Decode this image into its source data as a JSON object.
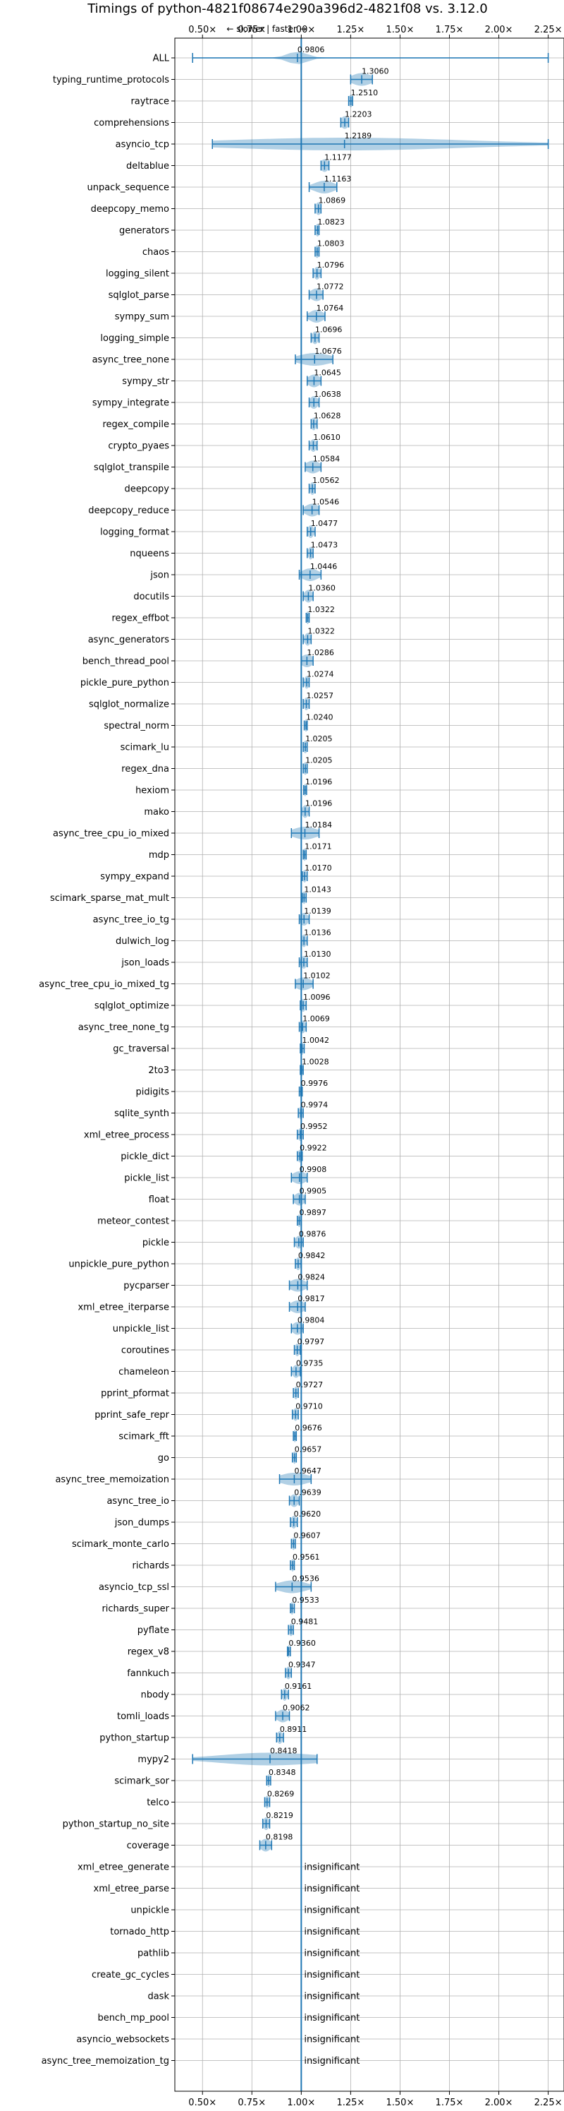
{
  "chart_data": {
    "type": "violin",
    "title": "Timings of python-4821f08674e290a396d2-4821f08 vs. 3.12.0",
    "annotation": "← slower | faster →",
    "xlim": [
      0.36,
      2.33
    ],
    "xticks": [
      0.5,
      0.75,
      1.0,
      1.25,
      1.5,
      1.75,
      2.0,
      2.25
    ],
    "xtick_labels": [
      "0.50×",
      "0.75×",
      "1.00×",
      "1.25×",
      "1.50×",
      "1.75×",
      "2.00×",
      "2.25×"
    ],
    "reference": 1.0,
    "grid": true,
    "benchmarks": [
      {
        "name": "ALL",
        "mean": 0.9806,
        "label": "0.9806",
        "min": 0.45,
        "max": 2.25,
        "spread": 0.05
      },
      {
        "name": "typing_runtime_protocols",
        "mean": 1.306,
        "label": "1.3060",
        "min": 1.25,
        "max": 1.36,
        "spread": 0.05
      },
      {
        "name": "raytrace",
        "mean": 1.251,
        "label": "1.2510",
        "min": 1.24,
        "max": 1.26,
        "spread": 0.01
      },
      {
        "name": "comprehensions",
        "mean": 1.2203,
        "label": "1.2203",
        "min": 1.2,
        "max": 1.24,
        "spread": 0.02
      },
      {
        "name": "asyncio_tcp",
        "mean": 1.2189,
        "label": "1.2189",
        "min": 0.55,
        "max": 2.25,
        "spread": 0.6
      },
      {
        "name": "deltablue",
        "mean": 1.1177,
        "label": "1.1177",
        "min": 1.1,
        "max": 1.14,
        "spread": 0.02
      },
      {
        "name": "unpack_sequence",
        "mean": 1.1163,
        "label": "1.1163",
        "min": 1.04,
        "max": 1.18,
        "spread": 0.05
      },
      {
        "name": "deepcopy_memo",
        "mean": 1.0869,
        "label": "1.0869",
        "min": 1.07,
        "max": 1.1,
        "spread": 0.015
      },
      {
        "name": "generators",
        "mean": 1.0823,
        "label": "1.0823",
        "min": 1.07,
        "max": 1.09,
        "spread": 0.01
      },
      {
        "name": "chaos",
        "mean": 1.0803,
        "label": "1.0803",
        "min": 1.07,
        "max": 1.09,
        "spread": 0.01
      },
      {
        "name": "logging_silent",
        "mean": 1.0796,
        "label": "1.0796",
        "min": 1.06,
        "max": 1.1,
        "spread": 0.015
      },
      {
        "name": "sqlglot_parse",
        "mean": 1.0772,
        "label": "1.0772",
        "min": 1.04,
        "max": 1.11,
        "spread": 0.03
      },
      {
        "name": "sympy_sum",
        "mean": 1.0764,
        "label": "1.0764",
        "min": 1.03,
        "max": 1.12,
        "spread": 0.035
      },
      {
        "name": "logging_simple",
        "mean": 1.0696,
        "label": "1.0696",
        "min": 1.05,
        "max": 1.09,
        "spread": 0.015
      },
      {
        "name": "async_tree_none",
        "mean": 1.0676,
        "label": "1.0676",
        "min": 0.97,
        "max": 1.16,
        "spread": 0.08
      },
      {
        "name": "sympy_str",
        "mean": 1.0645,
        "label": "1.0645",
        "min": 1.03,
        "max": 1.1,
        "spread": 0.03
      },
      {
        "name": "sympy_integrate",
        "mean": 1.0638,
        "label": "1.0638",
        "min": 1.04,
        "max": 1.09,
        "spread": 0.02
      },
      {
        "name": "regex_compile",
        "mean": 1.0628,
        "label": "1.0628",
        "min": 1.05,
        "max": 1.08,
        "spread": 0.012
      },
      {
        "name": "crypto_pyaes",
        "mean": 1.061,
        "label": "1.0610",
        "min": 1.04,
        "max": 1.08,
        "spread": 0.015
      },
      {
        "name": "sqlglot_transpile",
        "mean": 1.0584,
        "label": "1.0584",
        "min": 1.02,
        "max": 1.1,
        "spread": 0.035
      },
      {
        "name": "deepcopy",
        "mean": 1.0562,
        "label": "1.0562",
        "min": 1.04,
        "max": 1.07,
        "spread": 0.012
      },
      {
        "name": "deepcopy_reduce",
        "mean": 1.0546,
        "label": "1.0546",
        "min": 1.01,
        "max": 1.09,
        "spread": 0.035
      },
      {
        "name": "logging_format",
        "mean": 1.0477,
        "label": "1.0477",
        "min": 1.03,
        "max": 1.07,
        "spread": 0.015
      },
      {
        "name": "nqueens",
        "mean": 1.0473,
        "label": "1.0473",
        "min": 1.03,
        "max": 1.06,
        "spread": 0.012
      },
      {
        "name": "json",
        "mean": 1.0446,
        "label": "1.0446",
        "min": 0.99,
        "max": 1.1,
        "spread": 0.04
      },
      {
        "name": "docutils",
        "mean": 1.036,
        "label": "1.0360",
        "min": 1.01,
        "max": 1.06,
        "spread": 0.02
      },
      {
        "name": "regex_effbot",
        "mean": 1.0322,
        "label": "1.0322",
        "min": 1.025,
        "max": 1.04,
        "spread": 0.008
      },
      {
        "name": "async_generators",
        "mean": 1.0322,
        "label": "1.0322",
        "min": 1.01,
        "max": 1.05,
        "spread": 0.015
      },
      {
        "name": "bench_thread_pool",
        "mean": 1.0286,
        "label": "1.0286",
        "min": 1.0,
        "max": 1.06,
        "spread": 0.03
      },
      {
        "name": "pickle_pure_python",
        "mean": 1.0274,
        "label": "1.0274",
        "min": 1.01,
        "max": 1.04,
        "spread": 0.012
      },
      {
        "name": "sqlglot_normalize",
        "mean": 1.0257,
        "label": "1.0257",
        "min": 1.01,
        "max": 1.04,
        "spread": 0.012
      },
      {
        "name": "spectral_norm",
        "mean": 1.024,
        "label": "1.0240",
        "min": 1.015,
        "max": 1.03,
        "spread": 0.006
      },
      {
        "name": "scimark_lu",
        "mean": 1.0205,
        "label": "1.0205",
        "min": 1.01,
        "max": 1.03,
        "spread": 0.01
      },
      {
        "name": "regex_dna",
        "mean": 1.0205,
        "label": "1.0205",
        "min": 1.01,
        "max": 1.03,
        "spread": 0.01
      },
      {
        "name": "hexiom",
        "mean": 1.0196,
        "label": "1.0196",
        "min": 1.012,
        "max": 1.027,
        "spread": 0.006
      },
      {
        "name": "mako",
        "mean": 1.0196,
        "label": "1.0196",
        "min": 1.0,
        "max": 1.04,
        "spread": 0.015
      },
      {
        "name": "async_tree_cpu_io_mixed",
        "mean": 1.0184,
        "label": "1.0184",
        "min": 0.95,
        "max": 1.09,
        "spread": 0.06
      },
      {
        "name": "mdp",
        "mean": 1.0171,
        "label": "1.0171",
        "min": 1.01,
        "max": 1.025,
        "spread": 0.006
      },
      {
        "name": "sympy_expand",
        "mean": 1.017,
        "label": "1.0170",
        "min": 1.005,
        "max": 1.03,
        "spread": 0.01
      },
      {
        "name": "scimark_sparse_mat_mult",
        "mean": 1.0143,
        "label": "1.0143",
        "min": 1.005,
        "max": 1.025,
        "spread": 0.008
      },
      {
        "name": "async_tree_io_tg",
        "mean": 1.0139,
        "label": "1.0139",
        "min": 0.99,
        "max": 1.04,
        "spread": 0.02
      },
      {
        "name": "dulwich_log",
        "mean": 1.0136,
        "label": "1.0136",
        "min": 1.0,
        "max": 1.03,
        "spread": 0.012
      },
      {
        "name": "json_loads",
        "mean": 1.013,
        "label": "1.0130",
        "min": 0.99,
        "max": 1.03,
        "spread": 0.015
      },
      {
        "name": "async_tree_cpu_io_mixed_tg",
        "mean": 1.0102,
        "label": "1.0102",
        "min": 0.97,
        "max": 1.06,
        "spread": 0.04
      },
      {
        "name": "sqlglot_optimize",
        "mean": 1.0096,
        "label": "1.0096",
        "min": 0.995,
        "max": 1.025,
        "spread": 0.012
      },
      {
        "name": "async_tree_none_tg",
        "mean": 1.0069,
        "label": "1.0069",
        "min": 0.99,
        "max": 1.025,
        "spread": 0.015
      },
      {
        "name": "gc_traversal",
        "mean": 1.0042,
        "label": "1.0042",
        "min": 0.995,
        "max": 1.015,
        "spread": 0.008
      },
      {
        "name": "2to3",
        "mean": 1.0028,
        "label": "1.0028",
        "min": 0.995,
        "max": 1.01,
        "spread": 0.006
      },
      {
        "name": "pidigits",
        "mean": 0.9976,
        "label": "0.9976",
        "min": 0.99,
        "max": 1.005,
        "spread": 0.006
      },
      {
        "name": "sqlite_synth",
        "mean": 0.9974,
        "label": "0.9974",
        "min": 0.985,
        "max": 1.01,
        "spread": 0.01
      },
      {
        "name": "xml_etree_process",
        "mean": 0.9952,
        "label": "0.9952",
        "min": 0.98,
        "max": 1.01,
        "spread": 0.012
      },
      {
        "name": "pickle_dict",
        "mean": 0.9922,
        "label": "0.9922",
        "min": 0.98,
        "max": 1.005,
        "spread": 0.01
      },
      {
        "name": "pickle_list",
        "mean": 0.9908,
        "label": "0.9908",
        "min": 0.95,
        "max": 1.03,
        "spread": 0.035
      },
      {
        "name": "float",
        "mean": 0.9905,
        "label": "0.9905",
        "min": 0.96,
        "max": 1.02,
        "spread": 0.025
      },
      {
        "name": "meteor_contest",
        "mean": 0.9897,
        "label": "0.9897",
        "min": 0.98,
        "max": 1.0,
        "spread": 0.008
      },
      {
        "name": "pickle",
        "mean": 0.9876,
        "label": "0.9876",
        "min": 0.965,
        "max": 1.01,
        "spread": 0.018
      },
      {
        "name": "unpickle_pure_python",
        "mean": 0.9842,
        "label": "0.9842",
        "min": 0.97,
        "max": 1.0,
        "spread": 0.012
      },
      {
        "name": "pycparser",
        "mean": 0.9824,
        "label": "0.9824",
        "min": 0.94,
        "max": 1.03,
        "spread": 0.04
      },
      {
        "name": "xml_etree_iterparse",
        "mean": 0.9817,
        "label": "0.9817",
        "min": 0.94,
        "max": 1.02,
        "spread": 0.035
      },
      {
        "name": "unpickle_list",
        "mean": 0.9804,
        "label": "0.9804",
        "min": 0.95,
        "max": 1.01,
        "spread": 0.025
      },
      {
        "name": "coroutines",
        "mean": 0.9797,
        "label": "0.9797",
        "min": 0.965,
        "max": 0.995,
        "spread": 0.012
      },
      {
        "name": "chameleon",
        "mean": 0.9735,
        "label": "0.9735",
        "min": 0.95,
        "max": 0.995,
        "spread": 0.018
      },
      {
        "name": "pprint_pformat",
        "mean": 0.9727,
        "label": "0.9727",
        "min": 0.96,
        "max": 0.985,
        "spread": 0.01
      },
      {
        "name": "pprint_safe_repr",
        "mean": 0.971,
        "label": "0.9710",
        "min": 0.955,
        "max": 0.985,
        "spread": 0.012
      },
      {
        "name": "scimark_fft",
        "mean": 0.9676,
        "label": "0.9676",
        "min": 0.96,
        "max": 0.975,
        "spread": 0.006
      },
      {
        "name": "go",
        "mean": 0.9657,
        "label": "0.9657",
        "min": 0.955,
        "max": 0.975,
        "spread": 0.008
      },
      {
        "name": "async_tree_memoization",
        "mean": 0.9647,
        "label": "0.9647",
        "min": 0.89,
        "max": 1.05,
        "spread": 0.07
      },
      {
        "name": "async_tree_io",
        "mean": 0.9639,
        "label": "0.9639",
        "min": 0.94,
        "max": 0.99,
        "spread": 0.02
      },
      {
        "name": "json_dumps",
        "mean": 0.962,
        "label": "0.9620",
        "min": 0.945,
        "max": 0.98,
        "spread": 0.014
      },
      {
        "name": "scimark_monte_carlo",
        "mean": 0.9607,
        "label": "0.9607",
        "min": 0.95,
        "max": 0.97,
        "spread": 0.008
      },
      {
        "name": "richards",
        "mean": 0.9561,
        "label": "0.9561",
        "min": 0.945,
        "max": 0.965,
        "spread": 0.008
      },
      {
        "name": "asyncio_tcp_ssl",
        "mean": 0.9536,
        "label": "0.9536",
        "min": 0.87,
        "max": 1.05,
        "spread": 0.07
      },
      {
        "name": "richards_super",
        "mean": 0.9533,
        "label": "0.9533",
        "min": 0.945,
        "max": 0.965,
        "spread": 0.008
      },
      {
        "name": "pyflate",
        "mean": 0.9481,
        "label": "0.9481",
        "min": 0.935,
        "max": 0.96,
        "spread": 0.01
      },
      {
        "name": "regex_v8",
        "mean": 0.936,
        "label": "0.9360",
        "min": 0.93,
        "max": 0.945,
        "spread": 0.006
      },
      {
        "name": "fannkuch",
        "mean": 0.9347,
        "label": "0.9347",
        "min": 0.92,
        "max": 0.95,
        "spread": 0.012
      },
      {
        "name": "nbody",
        "mean": 0.9161,
        "label": "0.9161",
        "min": 0.9,
        "max": 0.935,
        "spread": 0.012
      },
      {
        "name": "tomli_loads",
        "mean": 0.9062,
        "label": "0.9062",
        "min": 0.87,
        "max": 0.94,
        "spread": 0.03
      },
      {
        "name": "python_startup",
        "mean": 0.8911,
        "label": "0.8911",
        "min": 0.875,
        "max": 0.91,
        "spread": 0.014
      },
      {
        "name": "mypy2",
        "mean": 0.8418,
        "label": "0.8418",
        "min": 0.45,
        "max": 1.08,
        "spread": 0.25
      },
      {
        "name": "scimark_sor",
        "mean": 0.8348,
        "label": "0.8348",
        "min": 0.825,
        "max": 0.845,
        "spread": 0.008
      },
      {
        "name": "telco",
        "mean": 0.8269,
        "label": "0.8269",
        "min": 0.815,
        "max": 0.84,
        "spread": 0.01
      },
      {
        "name": "python_startup_no_site",
        "mean": 0.8219,
        "label": "0.8219",
        "min": 0.805,
        "max": 0.84,
        "spread": 0.014
      },
      {
        "name": "coverage",
        "mean": 0.8198,
        "label": "0.8198",
        "min": 0.79,
        "max": 0.85,
        "spread": 0.025
      },
      {
        "name": "xml_etree_generate",
        "mean": null,
        "label": "insignificant"
      },
      {
        "name": "xml_etree_parse",
        "mean": null,
        "label": "insignificant"
      },
      {
        "name": "unpickle",
        "mean": null,
        "label": "insignificant"
      },
      {
        "name": "tornado_http",
        "mean": null,
        "label": "insignificant"
      },
      {
        "name": "pathlib",
        "mean": null,
        "label": "insignificant"
      },
      {
        "name": "create_gc_cycles",
        "mean": null,
        "label": "insignificant"
      },
      {
        "name": "dask",
        "mean": null,
        "label": "insignificant"
      },
      {
        "name": "bench_mp_pool",
        "mean": null,
        "label": "insignificant"
      },
      {
        "name": "asyncio_websockets",
        "mean": null,
        "label": "insignificant"
      },
      {
        "name": "async_tree_memoization_tg",
        "mean": null,
        "label": "insignificant"
      }
    ]
  },
  "colors": {
    "violin": "#1f77b4",
    "reference_line": "#1f77b4",
    "grid": "#b0b0b0",
    "mean_marker": "#d62728"
  }
}
